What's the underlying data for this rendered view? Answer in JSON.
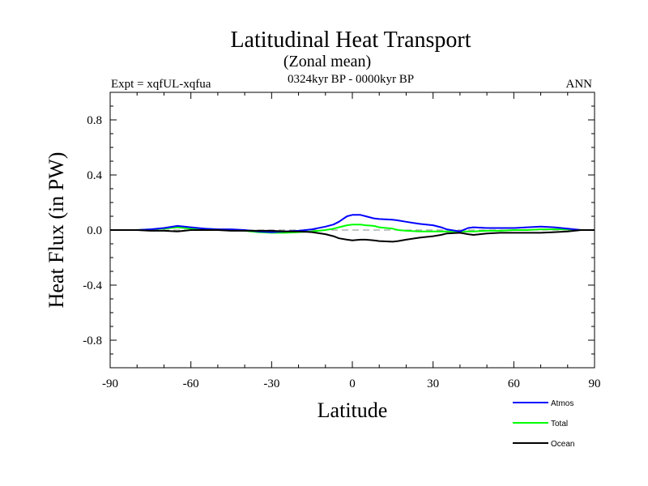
{
  "chart_data": {
    "type": "line",
    "title": "Latitudinal Heat Transport",
    "subtitle": "(Zonal mean)",
    "period": "0324kyr BP - 0000kyr BP",
    "experiment": "Expt = xqfUL-xqfua",
    "season": "ANN",
    "xlabel": "Latitude",
    "ylabel": "Heat Flux (in PW)",
    "xlim": [
      -90,
      90
    ],
    "ylim": [
      -1.0,
      1.0
    ],
    "xticks": [
      -90,
      -60,
      -30,
      0,
      30,
      60,
      90
    ],
    "xtick_labels": [
      "-90",
      "-60",
      "-30",
      "0",
      "30",
      "60",
      "90"
    ],
    "yticks": [
      -0.8,
      -0.4,
      0.0,
      0.4,
      0.8
    ],
    "ytick_labels": [
      "-0.8",
      "-0.4",
      "0.0",
      "0.4",
      "0.8"
    ],
    "x": [
      -90,
      -80,
      -75,
      -70,
      -65,
      -60,
      -55,
      -50,
      -45,
      -40,
      -35,
      -30,
      -25,
      -20,
      -15,
      -10,
      -7,
      -5,
      -2,
      0,
      3,
      5,
      8,
      10,
      15,
      17,
      20,
      25,
      30,
      33,
      35,
      40,
      43,
      45,
      50,
      55,
      60,
      65,
      70,
      75,
      80,
      85,
      90
    ],
    "series": [
      {
        "name": "Atmos",
        "color": "#0000ff",
        "values": [
          0,
          0,
          0.005,
          0.015,
          0.03,
          0.02,
          0.01,
          0.005,
          0.005,
          0.0,
          -0.01,
          -0.015,
          -0.01,
          -0.005,
          0.005,
          0.025,
          0.04,
          0.06,
          0.1,
          0.11,
          0.11,
          0.1,
          0.085,
          0.08,
          0.075,
          0.07,
          0.06,
          0.045,
          0.035,
          0.02,
          0.005,
          -0.01,
          0.015,
          0.02,
          0.015,
          0.015,
          0.015,
          0.02,
          0.025,
          0.02,
          0.01,
          0.0,
          0
        ]
      },
      {
        "name": "Total",
        "color": "#00ff00",
        "values": [
          0,
          0,
          0.005,
          0.01,
          0.02,
          0.01,
          0.01,
          0.005,
          0.0,
          -0.005,
          -0.015,
          -0.02,
          -0.02,
          -0.015,
          -0.01,
          0.0,
          0.01,
          0.02,
          0.035,
          0.04,
          0.04,
          0.035,
          0.03,
          0.02,
          0.01,
          0.0,
          -0.005,
          -0.01,
          -0.01,
          -0.01,
          -0.01,
          -0.01,
          -0.01,
          -0.01,
          -0.005,
          -0.005,
          0.0,
          0.0,
          0.005,
          0.005,
          0.005,
          0.0,
          0
        ]
      },
      {
        "name": "Ocean",
        "color": "#000000",
        "values": [
          0,
          0,
          -0.005,
          -0.005,
          -0.01,
          0.0,
          0.0,
          0.0,
          -0.005,
          -0.005,
          -0.005,
          -0.005,
          -0.01,
          -0.01,
          -0.015,
          -0.03,
          -0.045,
          -0.06,
          -0.07,
          -0.075,
          -0.07,
          -0.07,
          -0.075,
          -0.08,
          -0.085,
          -0.08,
          -0.07,
          -0.055,
          -0.045,
          -0.035,
          -0.025,
          -0.02,
          -0.03,
          -0.035,
          -0.025,
          -0.02,
          -0.02,
          -0.02,
          -0.02,
          -0.015,
          -0.01,
          0.0,
          0
        ]
      }
    ],
    "reference_line": {
      "y": 0.0,
      "style": "dashed",
      "color": "#888888"
    },
    "legend": {
      "placement": "bottom-right"
    }
  }
}
